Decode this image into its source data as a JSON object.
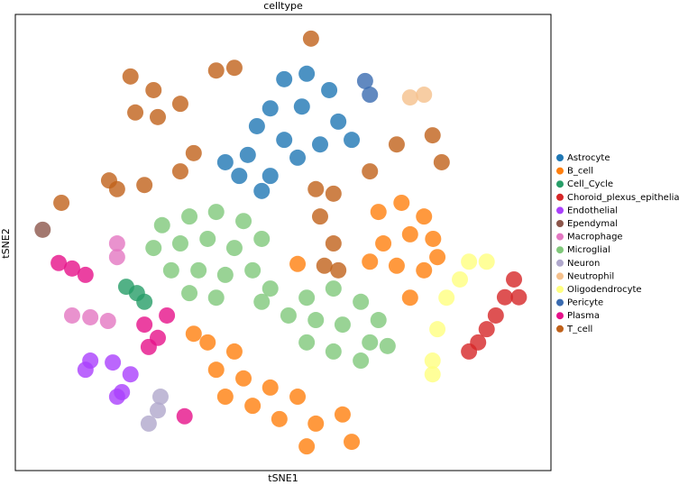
{
  "chart_data": {
    "type": "scatter",
    "title": "celltype",
    "x_label": "tSNE1",
    "y_label": "tSNE2",
    "xlim": [
      0,
      100
    ],
    "ylim": [
      0,
      100
    ],
    "grid": false,
    "legend": "right",
    "series": [
      {
        "name": "Astrocyte",
        "color": "#1f77b4",
        "x": [
          50.2,
          54.4,
          58.6,
          47.6,
          53.5,
          60.3,
          62.8,
          45.1,
          50.2,
          56.9,
          39.2,
          43.4,
          47.6,
          46.0,
          52.7,
          41.8
        ],
        "y": [
          85.8,
          87.0,
          83.4,
          79.4,
          79.8,
          76.5,
          72.5,
          75.5,
          72.5,
          71.5,
          67.6,
          69.2,
          64.6,
          61.3,
          68.6,
          64.6
        ]
      },
      {
        "name": "B_cell",
        "color": "#ff7f0e",
        "x": [
          35.9,
          40.9,
          37.5,
          42.6,
          47.6,
          52.7,
          44.3,
          49.3,
          56.1,
          61.1,
          62.8,
          54.4,
          39.2,
          33.3,
          67.8,
          72.1,
          76.3,
          78.0,
          73.7,
          68.7,
          66.2,
          71.2,
          76.3,
          73.7,
          78.8,
          52.7
        ],
        "y": [
          28.1,
          26.1,
          22.1,
          20.2,
          18.2,
          16.2,
          14.2,
          11.3,
          10.3,
          12.3,
          6.3,
          5.3,
          16.2,
          30.0,
          56.7,
          58.7,
          55.7,
          50.8,
          51.8,
          49.8,
          45.8,
          44.9,
          43.9,
          37.9,
          46.8,
          45.3
        ]
      },
      {
        "name": "Cell_Cycle",
        "color": "#279e68",
        "x": [
          20.7,
          22.7,
          24.1
        ],
        "y": [
          40.3,
          38.9,
          37.0
        ]
      },
      {
        "name": "Choroid_plexus_epithelial",
        "color": "#d62728",
        "x": [
          93.1,
          91.4,
          89.7,
          88.0,
          86.4,
          84.7,
          94.0
        ],
        "y": [
          41.9,
          38.0,
          34.0,
          31.0,
          28.1,
          26.1,
          38.0
        ]
      },
      {
        "name": "Endothelial",
        "color": "#aa40fc",
        "x": [
          14.0,
          18.2,
          21.5,
          19.9,
          19.0,
          13.1
        ],
        "y": [
          24.1,
          23.7,
          21.1,
          17.2,
          16.2,
          22.1
        ]
      },
      {
        "name": "Ependymal",
        "color": "#8c564b",
        "x": [
          5.1
        ],
        "y": [
          52.8
        ]
      },
      {
        "name": "Macrophage",
        "color": "#e377c2",
        "x": [
          10.6,
          14.0,
          17.3,
          19.0,
          19.0
        ],
        "y": [
          34.0,
          33.6,
          32.8,
          49.8,
          46.8
        ]
      },
      {
        "name": "Microglial",
        "color": "#80c87a",
        "x": [
          27.4,
          32.5,
          37.5,
          42.6,
          46.0,
          25.8,
          30.8,
          35.9,
          40.9,
          29.1,
          34.2,
          39.2,
          44.3,
          32.5,
          37.5,
          54.4,
          59.4,
          64.5,
          67.8,
          51.0,
          56.1,
          61.1,
          66.2,
          54.4,
          59.4,
          64.5,
          46.0,
          47.6,
          69.5
        ],
        "y": [
          53.8,
          55.7,
          56.7,
          54.7,
          50.8,
          48.8,
          49.8,
          50.8,
          48.8,
          43.9,
          43.9,
          42.9,
          43.9,
          38.9,
          37.9,
          37.9,
          39.9,
          37.0,
          33.0,
          34.0,
          33.0,
          32.0,
          28.1,
          28.1,
          26.1,
          24.1,
          37.0,
          39.9,
          27.3
        ]
      },
      {
        "name": "Neuron",
        "color": "#b0a8cc",
        "x": [
          27.1,
          26.6,
          24.9
        ],
        "y": [
          16.2,
          13.2,
          10.3
        ]
      },
      {
        "name": "Neutrophil",
        "color": "#f5c08c",
        "x": [
          73.7,
          76.3
        ],
        "y": [
          81.8,
          82.4
        ]
      },
      {
        "name": "Oligodendrocyte",
        "color": "#ffff80",
        "x": [
          84.7,
          88.0,
          83.0,
          80.5,
          78.8,
          77.9,
          77.9
        ],
        "y": [
          45.8,
          45.8,
          41.9,
          37.9,
          31.0,
          24.1,
          21.1
        ]
      },
      {
        "name": "Pericyte",
        "color": "#3a6bb0",
        "x": [
          65.3,
          66.2
        ],
        "y": [
          85.4,
          82.4
        ]
      },
      {
        "name": "Plasma",
        "color": "#e6118a",
        "x": [
          8.1,
          10.6,
          13.1,
          24.1,
          26.6,
          24.9,
          28.3,
          31.6
        ],
        "y": [
          45.5,
          44.3,
          42.9,
          32.0,
          29.1,
          27.1,
          34.0,
          11.9
        ]
      },
      {
        "name": "T_cell",
        "color": "#c0611a",
        "x": [
          21.5,
          25.8,
          22.4,
          26.6,
          30.8,
          37.5,
          40.9,
          17.5,
          19.0,
          24.1,
          30.8,
          33.3,
          56.1,
          59.4,
          56.9,
          59.4,
          57.7,
          60.3,
          66.2,
          71.2,
          77.9,
          79.6,
          55.2,
          8.6
        ],
        "y": [
          86.4,
          83.4,
          78.5,
          77.5,
          80.4,
          87.7,
          88.3,
          63.6,
          61.7,
          62.6,
          65.6,
          69.6,
          61.7,
          60.7,
          55.7,
          49.8,
          44.9,
          43.9,
          65.6,
          71.5,
          73.5,
          67.6,
          94.7,
          58.7
        ]
      }
    ]
  }
}
